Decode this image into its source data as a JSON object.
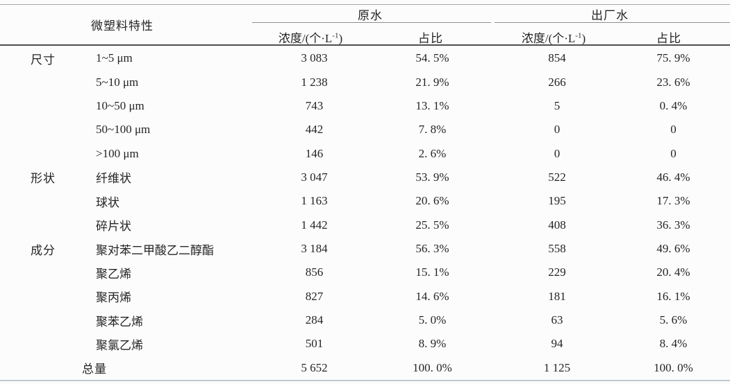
{
  "table": {
    "header": {
      "characteristic_label": "微塑料特性",
      "raw_water_label": "原水",
      "finished_water_label": "出厂水",
      "concentration_prefix": "浓度/(个·L",
      "concentration_sup": "-1",
      "concentration_suffix": ")",
      "proportion_label": "占比"
    },
    "rows": [
      {
        "category": "尺寸",
        "item": "1~5 μm",
        "raw_conc": "3 083",
        "raw_pct": "54. 5%",
        "out_conc": "854",
        "out_pct": "75. 9%"
      },
      {
        "category": "",
        "item": "5~10 μm",
        "raw_conc": "1 238",
        "raw_pct": "21. 9%",
        "out_conc": "266",
        "out_pct": "23. 6%"
      },
      {
        "category": "",
        "item": "10~50 μm",
        "raw_conc": "743",
        "raw_pct": "13. 1%",
        "out_conc": "5",
        "out_pct": "0. 4%"
      },
      {
        "category": "",
        "item": "50~100 μm",
        "raw_conc": "442",
        "raw_pct": "7. 8%",
        "out_conc": "0",
        "out_pct": "0"
      },
      {
        "category": "",
        "item": ">100 μm",
        "raw_conc": "146",
        "raw_pct": "2. 6%",
        "out_conc": "0",
        "out_pct": "0"
      },
      {
        "category": "形状",
        "item": "纤维状",
        "raw_conc": "3 047",
        "raw_pct": "53. 9%",
        "out_conc": "522",
        "out_pct": "46. 4%"
      },
      {
        "category": "",
        "item": "球状",
        "raw_conc": "1 163",
        "raw_pct": "20. 6%",
        "out_conc": "195",
        "out_pct": "17. 3%"
      },
      {
        "category": "",
        "item": "碎片状",
        "raw_conc": "1 442",
        "raw_pct": "25. 5%",
        "out_conc": "408",
        "out_pct": "36. 3%"
      },
      {
        "category": "成分",
        "item": "聚对苯二甲酸乙二醇酯",
        "raw_conc": "3 184",
        "raw_pct": "56. 3%",
        "out_conc": "558",
        "out_pct": "49. 6%"
      },
      {
        "category": "",
        "item": "聚乙烯",
        "raw_conc": "856",
        "raw_pct": "15. 1%",
        "out_conc": "229",
        "out_pct": "20. 4%"
      },
      {
        "category": "",
        "item": "聚丙烯",
        "raw_conc": "827",
        "raw_pct": "14. 6%",
        "out_conc": "181",
        "out_pct": "16. 1%"
      },
      {
        "category": "",
        "item": "聚苯乙烯",
        "raw_conc": "284",
        "raw_pct": "5. 0%",
        "out_conc": "63",
        "out_pct": "5. 6%"
      },
      {
        "category": "",
        "item": "聚氯乙烯",
        "raw_conc": "501",
        "raw_pct": "8. 9%",
        "out_conc": "94",
        "out_pct": "8. 4%"
      },
      {
        "category": "",
        "item": "总量",
        "total": true,
        "raw_conc": "5 652",
        "raw_pct": "100. 0%",
        "out_conc": "1 125",
        "out_pct": "100. 0%"
      }
    ]
  }
}
